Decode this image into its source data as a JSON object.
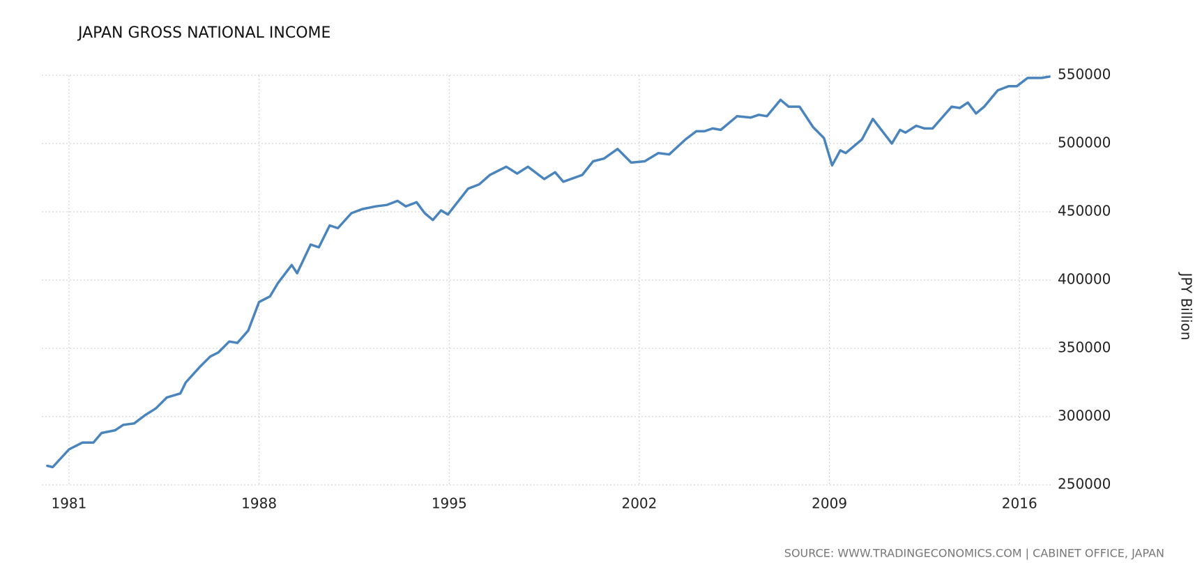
{
  "chart_data": {
    "type": "line",
    "title": "JAPAN GROSS NATIONAL INCOME",
    "ylabel": "JPY Billion",
    "source": "SOURCE: WWW.TRADINGECONOMICS.COM | CABINET OFFICE, JAPAN",
    "xlim": [
      1980,
      2017.2
    ],
    "xticks": [
      1981,
      1988,
      1995,
      2002,
      2009,
      2016
    ],
    "ylim": [
      250000,
      550000
    ],
    "yticks": [
      250000,
      300000,
      350000,
      400000,
      450000,
      500000,
      550000
    ],
    "grid": true,
    "x": [
      1980.2,
      1980.4,
      1981.0,
      1981.5,
      1981.9,
      1982.2,
      1982.7,
      1983.0,
      1983.4,
      1983.8,
      1984.2,
      1984.6,
      1985.1,
      1985.3,
      1985.8,
      1986.2,
      1986.5,
      1986.9,
      1987.2,
      1987.6,
      1988.0,
      1988.4,
      1988.7,
      1989.2,
      1989.4,
      1989.9,
      1990.2,
      1990.6,
      1990.9,
      1991.4,
      1991.8,
      1992.3,
      1992.7,
      1993.1,
      1993.4,
      1993.8,
      1994.1,
      1994.4,
      1994.7,
      1994.95,
      1995.7,
      1996.1,
      1996.5,
      1997.1,
      1997.5,
      1997.9,
      1998.5,
      1998.9,
      1999.2,
      1999.9,
      2000.3,
      2000.7,
      2001.2,
      2001.7,
      2002.2,
      2002.7,
      2003.1,
      2003.7,
      2004.1,
      2004.4,
      2004.7,
      2005.0,
      2005.6,
      2006.1,
      2006.4,
      2006.7,
      2007.2,
      2007.5,
      2007.9,
      2008.4,
      2008.8,
      2009.1,
      2009.4,
      2009.6,
      2010.2,
      2010.6,
      2011.3,
      2011.6,
      2011.8,
      2012.2,
      2012.5,
      2012.8,
      2013.5,
      2013.8,
      2014.1,
      2014.4,
      2014.7,
      2015.2,
      2015.6,
      2015.9,
      2016.3,
      2016.8,
      2017.1
    ],
    "series": [
      {
        "name": "Gross National Income",
        "color": "#4a84bd",
        "values": [
          264000,
          263000,
          276000,
          281000,
          281000,
          288000,
          290000,
          294000,
          295000,
          301000,
          306000,
          314000,
          317000,
          325000,
          336000,
          344000,
          347000,
          355000,
          354000,
          363000,
          384000,
          388000,
          398000,
          411000,
          405000,
          426000,
          424000,
          440000,
          438000,
          449000,
          452000,
          454000,
          455000,
          458000,
          454000,
          457000,
          449000,
          444000,
          451000,
          448000,
          467000,
          470000,
          477000,
          483000,
          478000,
          483000,
          474000,
          479000,
          472000,
          477000,
          487000,
          489000,
          496000,
          486000,
          487000,
          493000,
          492000,
          503000,
          509000,
          509000,
          511000,
          510000,
          520000,
          519000,
          521000,
          520000,
          532000,
          527000,
          527000,
          512000,
          504000,
          484000,
          495000,
          493000,
          503000,
          518000,
          500000,
          510000,
          508000,
          513000,
          511000,
          511000,
          527000,
          526000,
          530000,
          522000,
          527000,
          539000,
          542000,
          542000,
          548000,
          548000,
          549000
        ]
      }
    ]
  }
}
